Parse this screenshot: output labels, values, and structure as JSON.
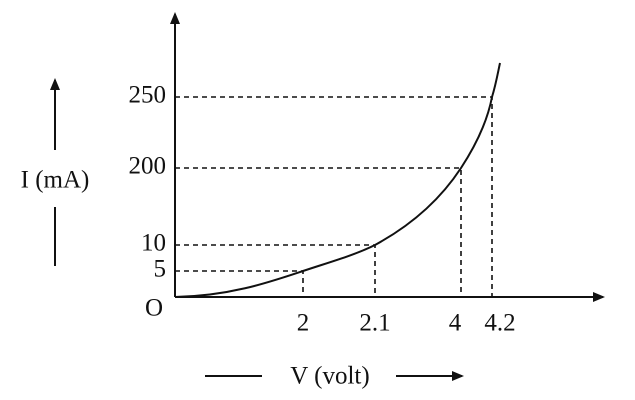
{
  "diagram": {
    "origin_label": "O",
    "y_axis_label": "I (mA)",
    "x_axis_label": "V (volt)",
    "points": [
      {
        "v": 2,
        "i": 5
      },
      {
        "v": 2.1,
        "i": 10
      },
      {
        "v": 4,
        "i": 200
      },
      {
        "v": 4.2,
        "i": 250
      }
    ]
  }
}
